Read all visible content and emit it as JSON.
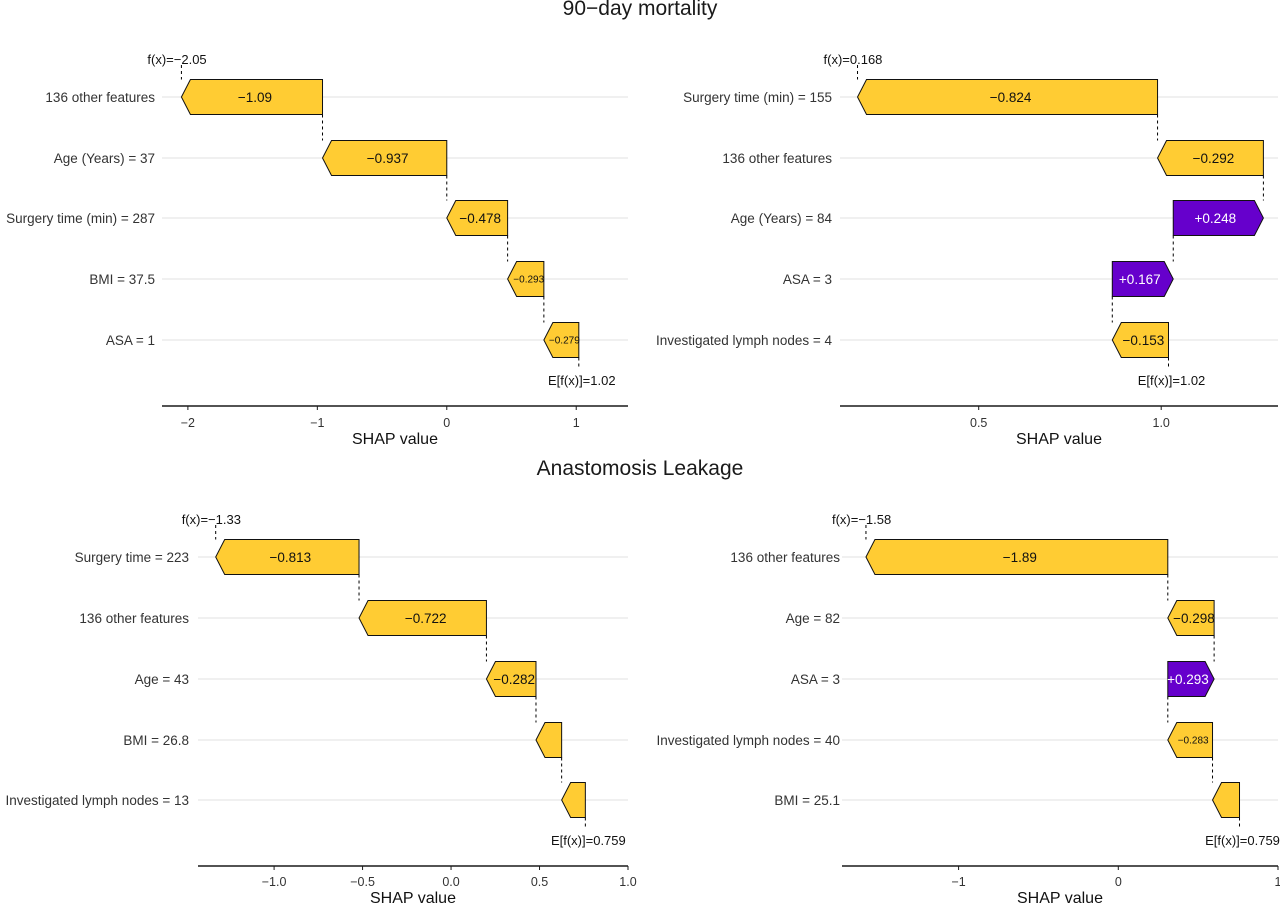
{
  "section_titles": {
    "top": "90−day mortality",
    "bottom": "Anastomosis Leakage"
  },
  "colors": {
    "negative": "#FFCC33",
    "positive": "#6600CC",
    "gridline": "#e6e6e6",
    "axis": "#1a1a1a"
  },
  "chart_data": [
    {
      "type": "waterfall",
      "xlabel": "SHAP value",
      "xlim": [
        -2.2,
        1.4
      ],
      "xticks": [
        -2,
        -1,
        0,
        1
      ],
      "tick_labels": [
        "−2",
        "−1",
        "0",
        "1"
      ],
      "fx_label": "f(x)=−2.05",
      "efx_label": "E[f(x)]=1.02",
      "fx": -2.05,
      "efx": 1.02,
      "bars": [
        {
          "feature": "136 other features",
          "start": -0.96,
          "end": -2.05,
          "label": "−1.09"
        },
        {
          "feature": "Age (Years) = 37",
          "start": 0.0,
          "end": -0.96,
          "label": "−0.937"
        },
        {
          "feature": "Surgery time (min) = 287",
          "start": 0.47,
          "end": 0.0,
          "label": "−0.478"
        },
        {
          "feature": "BMI = 37.5",
          "start": 0.75,
          "end": 0.47,
          "label": "−0.293"
        },
        {
          "feature": "ASA = 1",
          "start": 1.02,
          "end": 0.75,
          "label": "−0.279"
        }
      ]
    },
    {
      "type": "waterfall",
      "xlabel": "SHAP value",
      "xlim": [
        0.12,
        1.32
      ],
      "xticks": [
        0.5,
        1.0
      ],
      "tick_labels": [
        "0.5",
        "1.0"
      ],
      "fx_label": "f(x)=0.168",
      "efx_label": "E[f(x)]=1.02",
      "fx": 0.168,
      "efx": 1.02,
      "bars": [
        {
          "feature": "Surgery time (min) = 155",
          "start": 0.99,
          "end": 0.168,
          "label": "−0.824"
        },
        {
          "feature": "136 other features",
          "start": 1.28,
          "end": 0.99,
          "label": "−0.292"
        },
        {
          "feature": "Age (Years) = 84",
          "start": 1.033,
          "end": 1.28,
          "label": "+0.248"
        },
        {
          "feature": "ASA = 3",
          "start": 0.866,
          "end": 1.033,
          "label": "+0.167"
        },
        {
          "feature": "Investigated lymph nodes = 4",
          "start": 1.02,
          "end": 0.866,
          "label": "−0.153"
        }
      ]
    },
    {
      "type": "waterfall",
      "xlabel": "SHAP value",
      "xlim": [
        -1.43,
        1.0
      ],
      "xticks": [
        -1.0,
        -0.5,
        0.0,
        0.5,
        1.0
      ],
      "tick_labels": [
        "−1.0",
        "−0.5",
        "0.0",
        "0.5",
        "1.0"
      ],
      "fx_label": "f(x)=−1.33",
      "efx_label": "E[f(x)]=0.759",
      "fx": -1.33,
      "efx": 0.759,
      "bars": [
        {
          "feature": "Surgery time = 223",
          "start": -0.52,
          "end": -1.33,
          "label": "−0.813"
        },
        {
          "feature": "136 other features",
          "start": 0.2,
          "end": -0.52,
          "label": "−0.722"
        },
        {
          "feature": "Age = 43",
          "start": 0.48,
          "end": 0.2,
          "label": "−0.282"
        },
        {
          "feature": "BMI = 26.8",
          "start": 0.625,
          "end": 0.48,
          "label": ""
        },
        {
          "feature": "Investigated lymph nodes = 13",
          "start": 0.759,
          "end": 0.625,
          "label": ""
        }
      ]
    },
    {
      "type": "waterfall",
      "xlabel": "SHAP value",
      "xlim": [
        -1.73,
        1.0
      ],
      "xticks": [
        -1,
        0,
        1
      ],
      "tick_labels": [
        "−1",
        "0",
        "1"
      ],
      "fx_label": "f(x)=−1.58",
      "efx_label": "E[f(x)]=0.759",
      "fx": -1.58,
      "efx": 0.759,
      "bars": [
        {
          "feature": "136 other features",
          "start": 0.31,
          "end": -1.58,
          "label": "−1.89"
        },
        {
          "feature": "Age = 82",
          "start": 0.6,
          "end": 0.31,
          "label": "−0.298"
        },
        {
          "feature": "ASA = 3",
          "start": 0.31,
          "end": 0.6,
          "label": "+0.293"
        },
        {
          "feature": "Investigated lymph nodes = 40",
          "start": 0.59,
          "end": 0.31,
          "label": "−0.283"
        },
        {
          "feature": "BMI = 25.1",
          "start": 0.759,
          "end": 0.59,
          "label": ""
        }
      ]
    }
  ]
}
